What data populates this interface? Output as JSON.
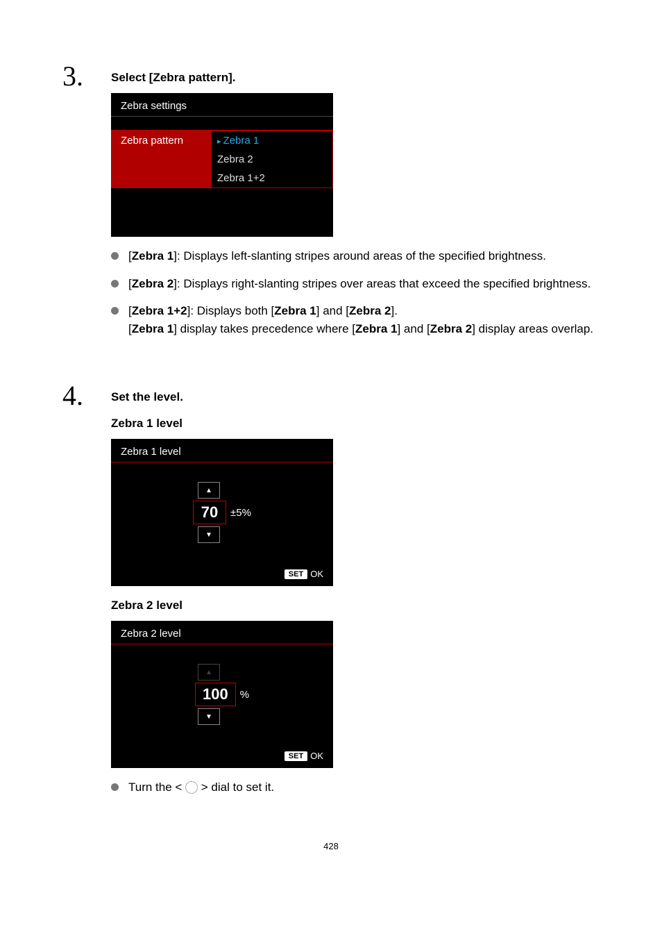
{
  "step3": {
    "number": "3.",
    "title": "Select [Zebra pattern].",
    "screenshot": {
      "header": "Zebra settings",
      "row_label": "Zebra pattern",
      "options": [
        "Zebra 1",
        "Zebra 2",
        "Zebra 1+2"
      ],
      "selected_index": 0
    },
    "bullets": [
      {
        "label": "Zebra 1",
        "text_after": ": Displays left-slanting stripes around areas of the specified brightness."
      },
      {
        "label": "Zebra 2",
        "text_after": ": Displays right-slanting stripes over areas that exceed the specified brightness."
      }
    ],
    "bullet3": {
      "label": "Zebra 1+2",
      "mid1": ": Displays both [",
      "ref1": "Zebra 1",
      "mid2": "] and [",
      "ref2": "Zebra 2",
      "mid3": "].",
      "line2_pre": "[",
      "line2_ref1": "Zebra 1",
      "line2_mid1": "] display takes precedence where [",
      "line2_ref2": "Zebra 1",
      "line2_mid2": "] and [",
      "line2_ref3": "Zebra 2",
      "line2_end": "] display areas overlap."
    }
  },
  "step4": {
    "number": "4.",
    "title": "Set the level.",
    "level1": {
      "heading": "Zebra 1 level",
      "title": "Zebra 1 level",
      "value": "70",
      "suffix": "±5%",
      "up_disabled": false,
      "down_disabled": false,
      "set_label": "SET",
      "ok_label": "OK"
    },
    "level2": {
      "heading": "Zebra 2 level",
      "title": "Zebra 2 level",
      "value": "100",
      "suffix": "%",
      "up_disabled": true,
      "down_disabled": false,
      "set_label": "SET",
      "ok_label": "OK"
    },
    "final_bullet": {
      "pre": "Turn the < ",
      "post": " > dial to set it."
    }
  },
  "page_number": "428",
  "colors": {
    "red_border": "#b00000",
    "selected_blue": "#2aa8e0",
    "white": "#ffffff",
    "black": "#000000",
    "bullet_gray": "#777777"
  }
}
